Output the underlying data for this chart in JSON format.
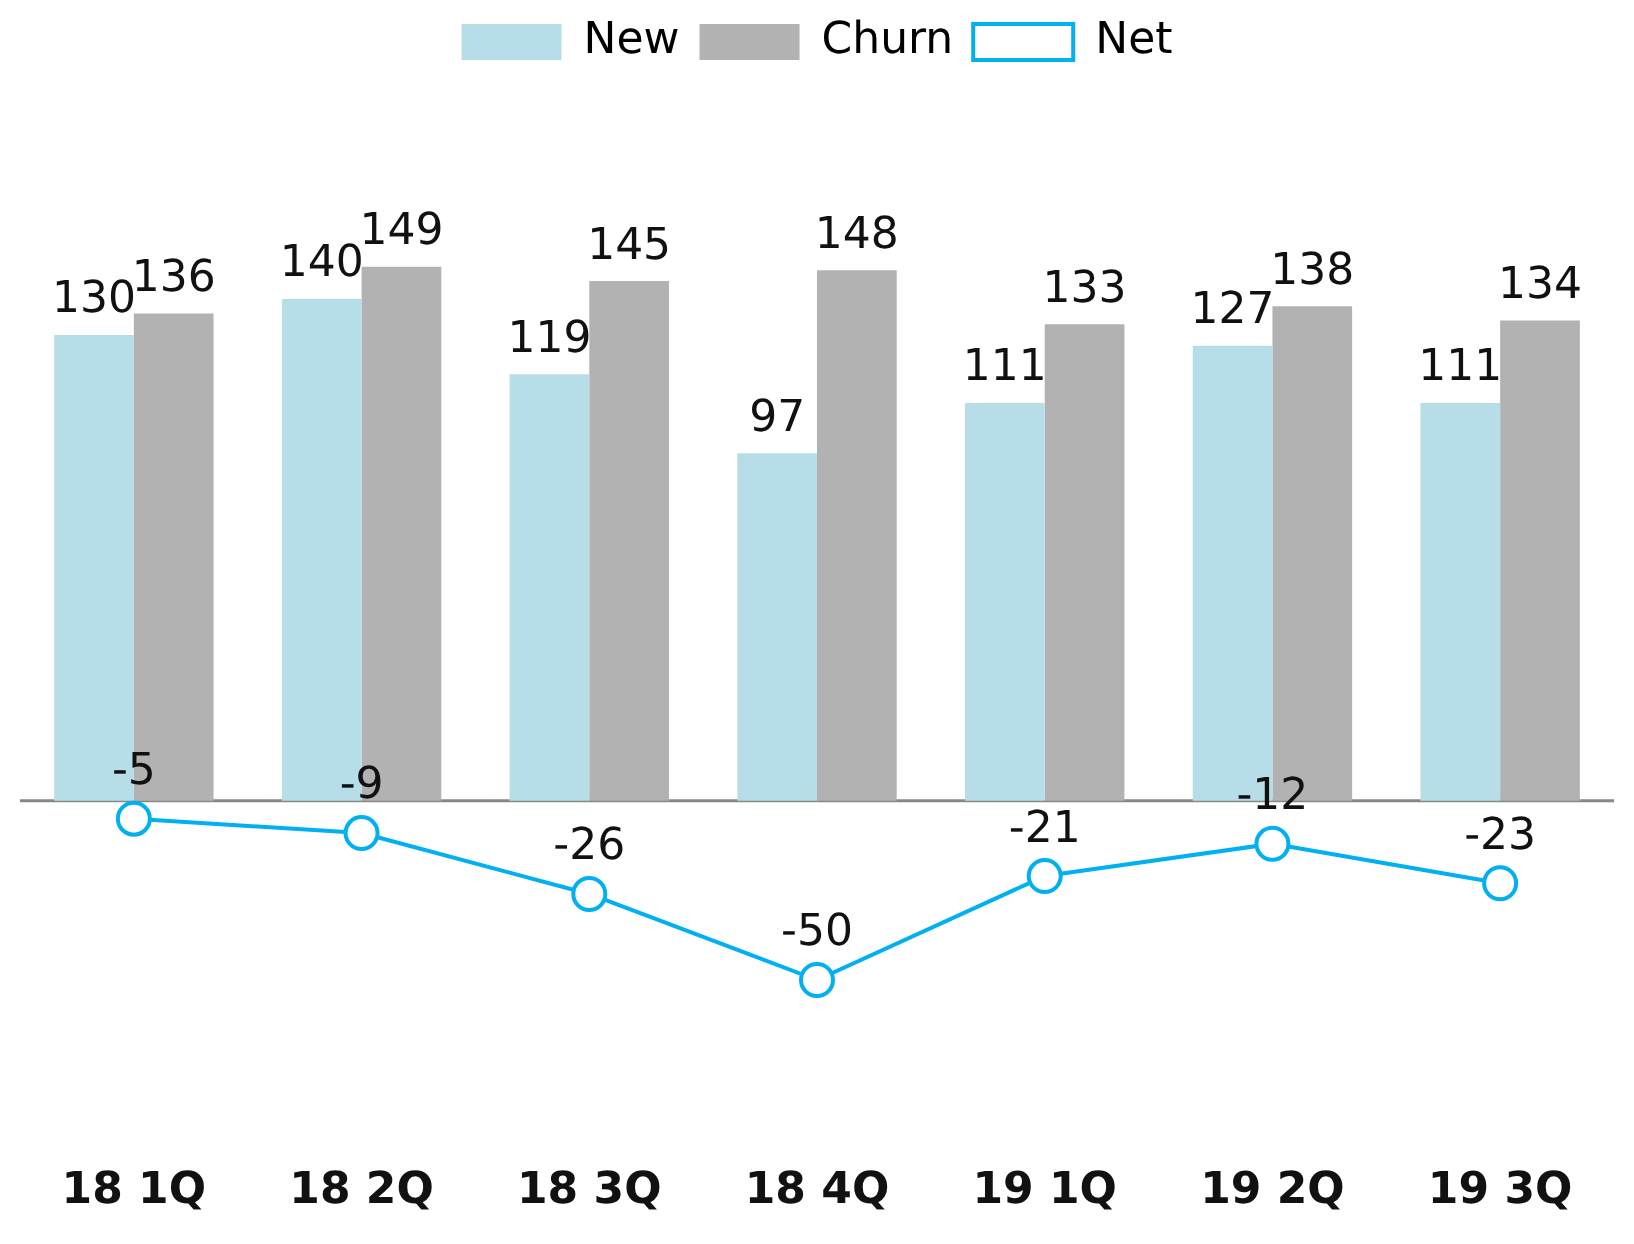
{
  "chart_data": {
    "type": "bar",
    "categories": [
      "18 1Q",
      "18 2Q",
      "18 3Q",
      "18 4Q",
      "19 1Q",
      "19 2Q",
      "19 3Q"
    ],
    "series": [
      {
        "name": "New",
        "color": "#b7dde8",
        "values": [
          130,
          140,
          119,
          97,
          111,
          127,
          111
        ]
      },
      {
        "name": "Churn",
        "color": "#b2b2b2",
        "values": [
          136,
          149,
          145,
          148,
          133,
          138,
          134
        ]
      },
      {
        "name": "Net",
        "type": "line",
        "color": "#00b0f0",
        "values": [
          -5,
          -9,
          -26,
          -50,
          -21,
          -12,
          -23
        ]
      }
    ],
    "data_labels": true,
    "legend": "top",
    "marker": "circle",
    "grid": false
  }
}
